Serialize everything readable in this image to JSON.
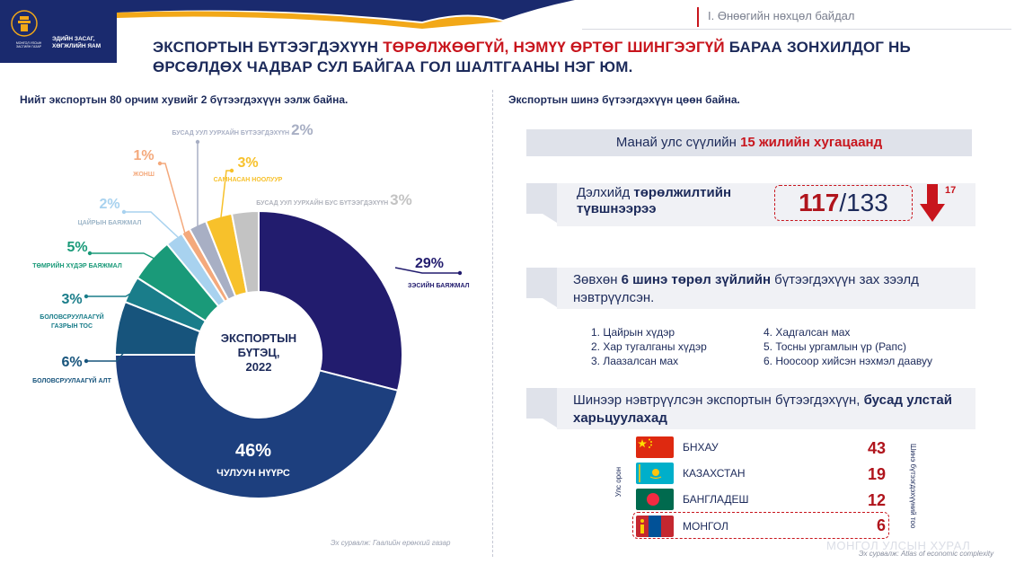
{
  "header": {
    "logo_ministry": "МОНГОЛ УЛСЫН ЗАСГИЙН ГАЗАР",
    "logo_title": "ЭДИЙН ЗАСАГ, ХӨГЖЛИЙН ЯАМ",
    "section_label": "I. Өнөөгийн нөхцөл байдал"
  },
  "headline": {
    "part1": "ЭКСПОРТЫН БҮТЭЭГДЭХҮҮН ",
    "part2_red": "ТӨРӨЛЖӨӨГҮЙ, НЭМҮҮ ӨРТӨГ ШИНГЭЭГҮЙ",
    "part3": " БАРАА ЗОНХИЛДОГ НЬ ӨРСӨЛДӨХ ЧАДВАР СУЛ БАЙГАА ГОЛ ШАЛТГААНЫ НЭГ ЮМ."
  },
  "left": {
    "subtitle": "Нийт экспортын 80 орчим хувийг 2 бүтээгдэхүүн ээлж байна.",
    "source": "Эх сурвалж: Гаалийн ерөнхий газар"
  },
  "chart_data": {
    "type": "pie",
    "center_title": [
      "ЭКСПОРТЫН",
      "БҮТЭЦ,",
      "2022"
    ],
    "series": [
      {
        "name": "ЗЭСИЙН БАЯЖМАЛ",
        "value": 29,
        "label": "29%",
        "color": "#221c6e"
      },
      {
        "name": "ЧУЛУУН НҮҮРС",
        "value": 46,
        "label": "46%",
        "color": "#1d3f7e"
      },
      {
        "name": "БОЛОВСРУУЛААГҮЙ АЛТ",
        "value": 6,
        "label": "6%",
        "color": "#17547c"
      },
      {
        "name": "БОЛОВСРУУЛААГҮЙ ГАЗРЫН ТОС",
        "value": 3,
        "label": "3%",
        "color": "#1a7d8a"
      },
      {
        "name": "ТӨМРИЙН ХҮДЭР БАЯЖМАЛ",
        "value": 5,
        "label": "5%",
        "color": "#1a9a79"
      },
      {
        "name": "ЦАЙРЫН БАЯЖМАЛ",
        "value": 2,
        "label": "2%",
        "color": "#a8d2ef"
      },
      {
        "name": "ЖОНШ",
        "value": 1,
        "label": "1%",
        "color": "#f4a97c"
      },
      {
        "name": "БУСАД УУЛ УУРХАЙН БҮТЭЭГДЭХҮҮН",
        "value": 2,
        "label": "2%",
        "color": "#a8afc4"
      },
      {
        "name": "САМНАСАН НООЛУУР",
        "value": 3,
        "label": "3%",
        "color": "#f7c12b"
      },
      {
        "name": "БУСАД УУЛ УУРХАЙН БУС БҮТЭЭГДЭХҮҮН",
        "value": 3,
        "label": "3%",
        "color": "#c3c3c3"
      }
    ]
  },
  "right": {
    "subtitle": "Экспортын шинэ бүтээгдэхүүн цөөн байна.",
    "ribbon1_a": "Манай улс сүүлийн ",
    "ribbon1_b": "15 жилийн хугацаанд",
    "rank_text_a": "Дэлхийд ",
    "rank_text_b": "төрөлжилтийн түвшнээрээ",
    "rank_value": "117",
    "rank_total": "/133",
    "rank_change": "17",
    "new_text_a": "Зөвхөн ",
    "new_text_b": "6 шинэ төрөл зүйлийн",
    "new_text_c": " бүтээгдэхүүн зах зээлд нэвтрүүлсэн.",
    "products_left": [
      "1.  Цайрын хүдэр",
      "2.  Хар тугалганы хүдэр",
      "3.  Лаазалсан мах"
    ],
    "products_right": [
      "4. Хадгалсан мах",
      "5. Тосны ургамлын үр (Рапс)",
      "6. Ноосоор хийсэн нэхмэл даавуу"
    ],
    "cmp_text_a": "Шинээр нэвтрүүлсэн экспортын бүтээгдэхүүн, ",
    "cmp_text_b": "бусад улстай харьцуулахад",
    "axis_country": "Улс орон",
    "axis_count": "Шинэ бүтээгдэхүүний тоо",
    "countries": [
      {
        "name": "БНХАУ",
        "value": "43"
      },
      {
        "name": "КАЗАХСТАН",
        "value": "19"
      },
      {
        "name": "БАНГЛАДЕШ",
        "value": "12"
      },
      {
        "name": "МОНГОЛ",
        "value": "6"
      }
    ],
    "source": "Эх сурвалж: Atlas of economic complexity",
    "watermark": "МОНГОЛ УЛСЫН ХУРАЛ"
  },
  "colors": {
    "navy": "#1c2a5a",
    "red": "#c8151d"
  }
}
